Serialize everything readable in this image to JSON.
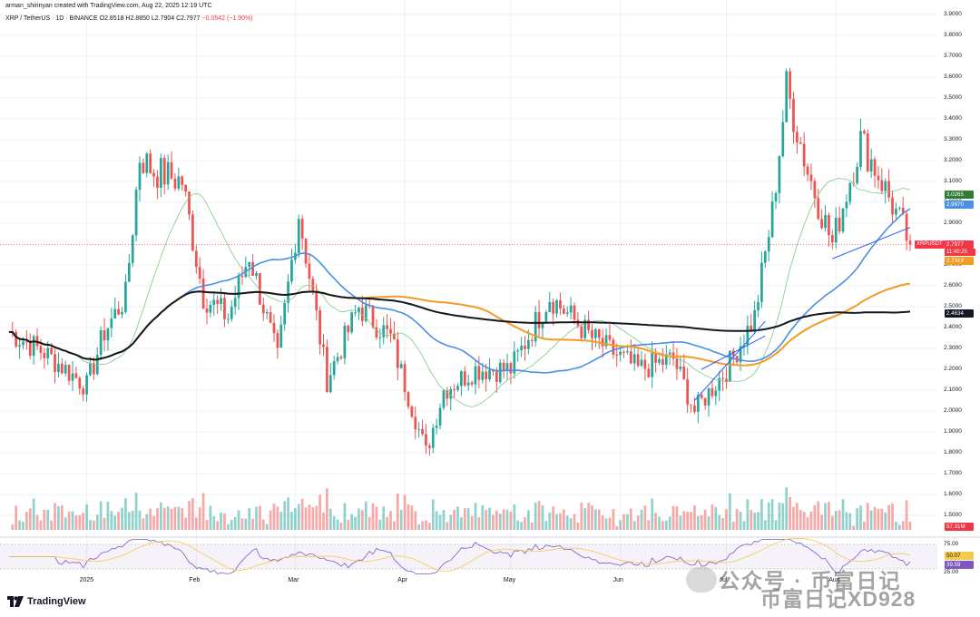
{
  "header": {
    "credit": "arman_shirinyan created with TradingView.com, Aug 22, 2025 12:19 UTC",
    "symbol": "XRP / TetherUS · 1D · BINANCE",
    "ohlc": "O2.8518  H2.8850  L2.7904  C2.7977",
    "change": "−0.0542 (−1.90%)"
  },
  "price_axis": {
    "labels": [
      "3.9000",
      "3.8000",
      "3.7000",
      "3.6000",
      "3.5000",
      "3.4000",
      "3.3000",
      "3.2000",
      "3.1000",
      "3.0000",
      "2.9000",
      "2.7000",
      "2.6000",
      "2.5000",
      "2.4000",
      "2.3000",
      "2.2000",
      "2.1000",
      "2.0000",
      "1.9000",
      "1.8000",
      "1.7000",
      "1.6000",
      "1.5000"
    ]
  },
  "badges": {
    "ma_green": {
      "text": "3.0265",
      "color": "#2e7d32"
    },
    "ma_blue": {
      "text": "2.9970",
      "color": "#4a90e2"
    },
    "symbol": "XRPUSDT",
    "last_price": {
      "text": "2.7977",
      "color": "#f23645"
    },
    "countdown": "11:40:25",
    "ma_orange": {
      "text": "2.7319",
      "color": "#f59a23"
    },
    "ma_black": {
      "text": "2.4634",
      "color": "#131722"
    },
    "volume": {
      "text": "57.31M",
      "color": "#f23645"
    },
    "rsi_ma": {
      "text": "50.07",
      "color": "#f7c948"
    },
    "rsi": {
      "text": "39.59",
      "color": "#7e57c2"
    }
  },
  "rsi_axis": {
    "upper": "75.00",
    "lower": "25.00"
  },
  "time_axis": [
    "2025",
    "Feb",
    "Mar",
    "Apr",
    "May",
    "Jun",
    "Jul",
    "Aug"
  ],
  "logo_text": "TradingView",
  "watermark": {
    "line1": "公众号 · 币富日记",
    "line2": "币富日记XD928"
  },
  "colors": {
    "up": "#26a69a",
    "down": "#ef5350",
    "ma20": "#81c784",
    "ma50": "#4a90e2",
    "ma100": "#f59a23",
    "ma200": "#131722",
    "rsi": "#7e57c2",
    "rsi_ma": "#f7c948"
  },
  "chart_data": {
    "type": "candlestick",
    "title": "XRP / TetherUS · 1D · BINANCE",
    "ylim": [
      1.5,
      3.9
    ],
    "anchors": [
      {
        "date": "2024-12-10",
        "close": 2.38
      },
      {
        "date": "2024-12-20",
        "close": 2.28
      },
      {
        "date": "2025-01-01",
        "close": 2.12
      },
      {
        "date": "2025-01-06",
        "close": 2.38
      },
      {
        "date": "2025-01-12",
        "close": 2.55
      },
      {
        "date": "2025-01-16",
        "close": 3.22
      },
      {
        "date": "2025-01-20",
        "close": 3.15
      },
      {
        "date": "2025-01-28",
        "close": 3.1
      },
      {
        "date": "2025-02-03",
        "close": 2.55
      },
      {
        "date": "2025-02-10",
        "close": 2.45
      },
      {
        "date": "2025-02-16",
        "close": 2.75
      },
      {
        "date": "2025-02-24",
        "close": 2.25
      },
      {
        "date": "2025-03-02",
        "close": 2.95
      },
      {
        "date": "2025-03-10",
        "close": 2.15
      },
      {
        "date": "2025-03-19",
        "close": 2.5
      },
      {
        "date": "2025-03-28",
        "close": 2.35
      },
      {
        "date": "2025-04-07",
        "close": 1.8
      },
      {
        "date": "2025-04-12",
        "close": 2.1
      },
      {
        "date": "2025-04-21",
        "close": 2.2
      },
      {
        "date": "2025-05-01",
        "close": 2.2
      },
      {
        "date": "2025-05-12",
        "close": 2.55
      },
      {
        "date": "2025-05-24",
        "close": 2.35
      },
      {
        "date": "2025-06-06",
        "close": 2.2
      },
      {
        "date": "2025-06-16",
        "close": 2.25
      },
      {
        "date": "2025-06-22",
        "close": 2.0
      },
      {
        "date": "2025-07-01",
        "close": 2.2
      },
      {
        "date": "2025-07-09",
        "close": 2.45
      },
      {
        "date": "2025-07-14",
        "close": 2.95
      },
      {
        "date": "2025-07-18",
        "close": 3.55
      },
      {
        "date": "2025-07-24",
        "close": 3.15
      },
      {
        "date": "2025-07-31",
        "close": 2.8
      },
      {
        "date": "2025-08-08",
        "close": 3.3
      },
      {
        "date": "2025-08-14",
        "close": 3.1
      },
      {
        "date": "2025-08-22",
        "close": 2.7977
      }
    ],
    "moving_averages": [
      {
        "name": "",
        "color": "#81c784",
        "last": 3.0265
      },
      {
        "name": "",
        "color": "#4a90e2",
        "last": 2.997
      },
      {
        "name": "",
        "color": "#f59a23",
        "last": 2.7319
      },
      {
        "name": "",
        "color": "#131722",
        "last": 2.4634
      }
    ],
    "volume_last": "57.31M",
    "rsi_last": 39.59,
    "rsi_ma_last": 50.07
  }
}
